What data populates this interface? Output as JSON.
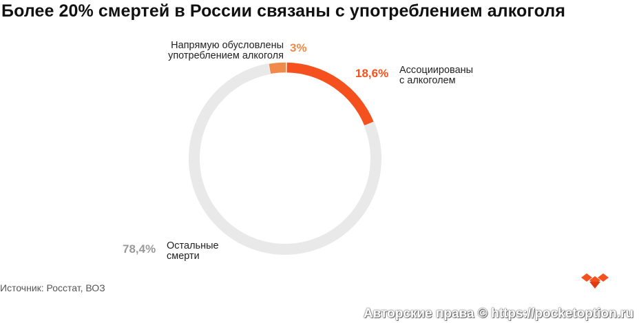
{
  "title": "Более 20% смертей в России связаны с употреблением алкоголя",
  "source": "Источник: Росстат, ВОЗ",
  "watermark": "Авторские права © https://pocketoption.ru",
  "chart_data": {
    "type": "pie",
    "title": "Более 20% смертей в России связаны с употреблением алкоголя",
    "slices": [
      {
        "label_lines": [
          "Напрямую обусловлены",
          "употреблением алкоголя"
        ],
        "value": 3,
        "value_label": "3%",
        "color": "#f08a4b"
      },
      {
        "label_lines": [
          "Ассоциированы",
          "с алкоголем"
        ],
        "value": 18.6,
        "value_label": "18,6%",
        "color": "#f4511e"
      },
      {
        "label_lines": [
          "Остальные",
          "смерти"
        ],
        "value": 78.4,
        "value_label": "78,4%",
        "color": "#e9e9e9"
      }
    ]
  },
  "colors": {
    "text": "#222222",
    "other_pct": "#9a9a9a",
    "logo": "#f4511e"
  }
}
